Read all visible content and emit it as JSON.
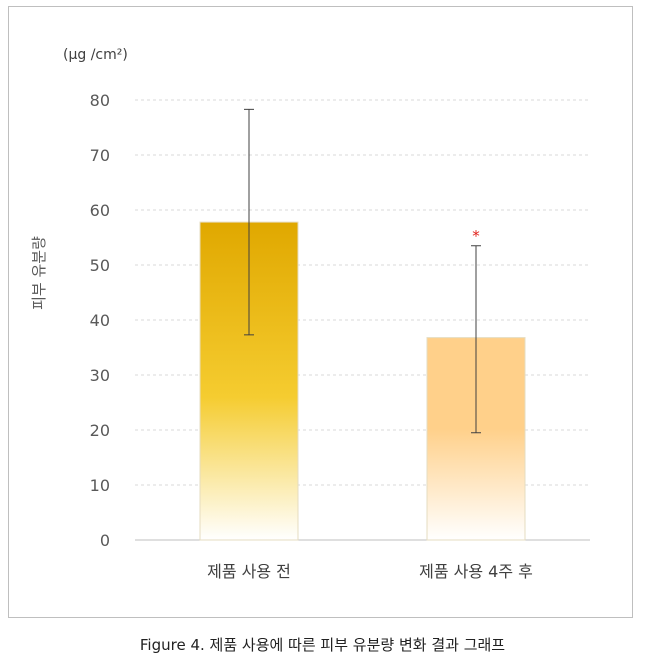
{
  "chart_data": {
    "type": "bar",
    "categories": [
      "제품 사용 전",
      "제품 사용 4주 후"
    ],
    "series": [
      {
        "values": [
          57.8,
          36.8
        ],
        "error_low": [
          37.3,
          19.5
        ],
        "error_high": [
          78.3,
          53.5
        ]
      }
    ],
    "significance": [
      "",
      "*"
    ],
    "ylabel": "피부 유분량",
    "unit_label": "(μg /cm²)",
    "ylim": [
      0,
      80
    ],
    "yticks": [
      0,
      10,
      20,
      30,
      40,
      50,
      60,
      70,
      80
    ],
    "grid": true,
    "colors": {
      "bar1_top": "#E0A800",
      "bar1_mid": "#F5CC30",
      "bar1_bottom": "#FFFFFF",
      "bar2_top": "#FFD08A",
      "bar2_bottom": "#FFFFFF",
      "significance": "#E0201A"
    }
  },
  "caption": "Figure 4. 제품 사용에 따른 피부 유분량 변화 결과 그래프"
}
